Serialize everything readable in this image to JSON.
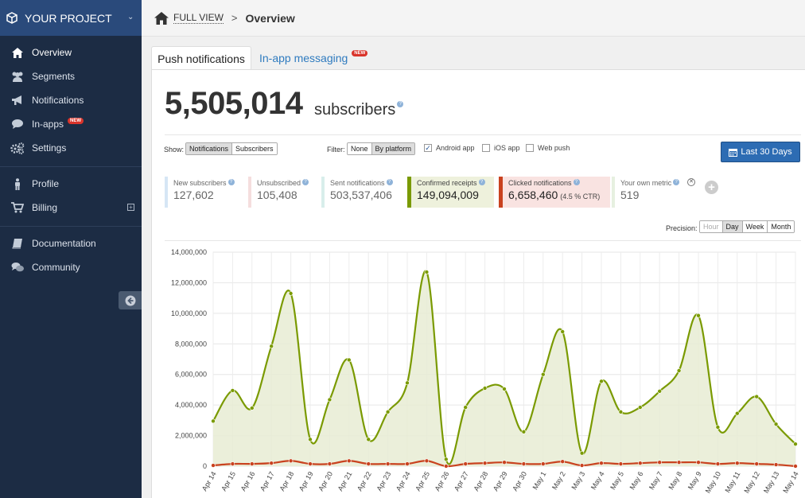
{
  "sidebar": {
    "project_name": "YOUR PROJECT",
    "items": [
      {
        "label": "Overview"
      },
      {
        "label": "Segments"
      },
      {
        "label": "Notifications"
      },
      {
        "label": "In-apps",
        "badge": "NEW"
      },
      {
        "label": "Settings"
      },
      {
        "label": "Profile"
      },
      {
        "label": "Billing"
      },
      {
        "label": "Documentation"
      },
      {
        "label": "Community"
      }
    ]
  },
  "breadcrumb": {
    "link": "FULL VIEW",
    "separator": ">",
    "current": "Overview"
  },
  "tabs": [
    {
      "label": "Push notifications"
    },
    {
      "label": "In-app messaging",
      "badge": "NEW"
    }
  ],
  "summary": {
    "count": "5,505,014",
    "label": "subscribers"
  },
  "controls": {
    "show_label": "Show:",
    "show_options": [
      "Notifications",
      "Subscribers"
    ],
    "filter_label": "Filter:",
    "filter_options": [
      "None",
      "By platform"
    ],
    "platforms": [
      {
        "label": "Android app",
        "checked": true
      },
      {
        "label": "iOS app",
        "checked": false
      },
      {
        "label": "Web push",
        "checked": false
      }
    ],
    "date_range": "Last 30 Days"
  },
  "metrics": [
    {
      "label": "New subscribers",
      "value": "127,602",
      "color": "#d6e6f5"
    },
    {
      "label": "Unsubscribed",
      "value": "105,408",
      "color": "#f5dede"
    },
    {
      "label": "Sent notifications",
      "value": "503,537,406",
      "color": "#d8eeeb"
    },
    {
      "label": "Confirmed receipts",
      "value": "149,094,009",
      "color": "#7a9a01"
    },
    {
      "label": "Clicked notifications",
      "value": "6,658,460",
      "ctr": "(4.5 % CTR)",
      "color": "#c9421f"
    },
    {
      "label": "Your own metric",
      "value": "519",
      "color": "#e6f0e0"
    }
  ],
  "precision": {
    "label": "Precision:",
    "options": [
      "Hour",
      "Day",
      "Week",
      "Month"
    ],
    "selected": "Day"
  },
  "chart_data": {
    "type": "line",
    "x": [
      "Apr 14",
      "Apr 15",
      "Apr 16",
      "Apr 17",
      "Apr 18",
      "Apr 19",
      "Apr 20",
      "Apr 21",
      "Apr 22",
      "Apr 23",
      "Apr 24",
      "Apr 25",
      "Apr 26",
      "Apr 27",
      "Apr 28",
      "Apr 29",
      "Apr 30",
      "May 1",
      "May 2",
      "May 3",
      "May 4",
      "May 5",
      "May 6",
      "May 7",
      "May 8",
      "May 9",
      "May 10",
      "May 11",
      "May 12",
      "May 13",
      "May 14"
    ],
    "ylim": [
      0,
      14000000
    ],
    "y_ticks": [
      0,
      2000000,
      4000000,
      6000000,
      8000000,
      10000000,
      12000000,
      14000000
    ],
    "y_tick_labels": [
      "0",
      "2,000,000",
      "4,000,000",
      "6,000,000",
      "8,000,000",
      "10,000,000",
      "12,000,000",
      "14,000,000"
    ],
    "series": [
      {
        "name": "Confirmed receipts",
        "color": "#7a9a01",
        "fill": "#e8ecd3",
        "values": [
          2950000,
          4950000,
          3800000,
          7850000,
          11300000,
          1750000,
          4350000,
          6950000,
          1750000,
          3550000,
          5450000,
          12700000,
          450000,
          3850000,
          5100000,
          5050000,
          2250000,
          6000000,
          8800000,
          850000,
          5550000,
          3550000,
          3850000,
          4900000,
          6250000,
          9850000,
          2550000,
          3450000,
          4550000,
          2750000,
          1450000
        ]
      },
      {
        "name": "Clicked notifications",
        "color": "#c9421f",
        "fill": "none",
        "values": [
          50000,
          150000,
          150000,
          200000,
          350000,
          150000,
          150000,
          350000,
          150000,
          150000,
          150000,
          350000,
          0,
          150000,
          200000,
          250000,
          150000,
          150000,
          300000,
          50000,
          200000,
          150000,
          200000,
          250000,
          250000,
          250000,
          150000,
          200000,
          150000,
          100000,
          0
        ]
      }
    ]
  }
}
